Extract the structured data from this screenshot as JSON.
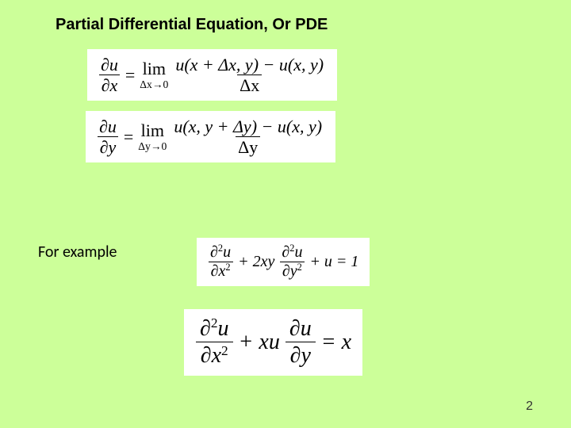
{
  "background_color": "#ccff99",
  "title": "Partial Differential Equation, Or PDE",
  "for_example_label": "For example",
  "page_number": "2",
  "equations": {
    "eq1": {
      "lhs_num": "∂u",
      "lhs_den": "∂x",
      "lim_label": "lim",
      "lim_sub": "Δx→0",
      "rhs_num": "u(x + Δx, y) − u(x, y)",
      "rhs_den": "Δx"
    },
    "eq2": {
      "lhs_num": "∂u",
      "lhs_den": "∂y",
      "lim_label": "lim",
      "lim_sub": "Δy→0",
      "rhs_num": "u(x, y + Δy) − u(x, y)",
      "rhs_den": "Δy"
    },
    "eq3": {
      "t1_num": "∂²u",
      "t1_den": "∂x²",
      "plus1": "+ 2xy",
      "t2_num": "∂²u",
      "t2_den": "∂y²",
      "tail": "+ u = 1"
    },
    "eq4": {
      "t1_num": "∂²u",
      "t1_den": "∂x²",
      "mid": "+ xu",
      "t2_num": "∂u",
      "t2_den": "∂y",
      "tail": "= x"
    }
  }
}
